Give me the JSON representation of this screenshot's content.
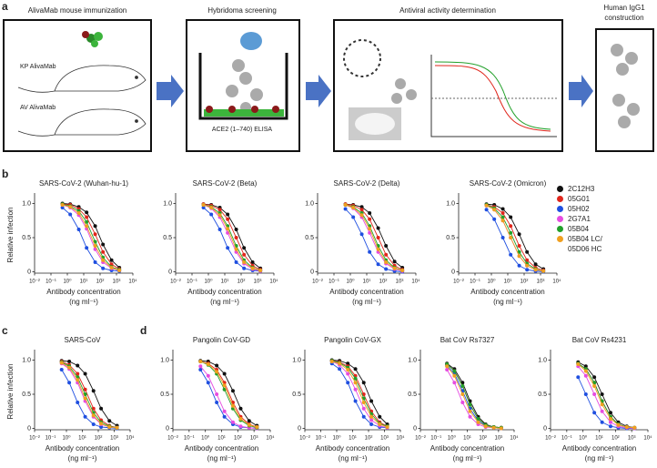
{
  "panel_a": {
    "letter": "a",
    "step1": "AlivaMab mouse immunization",
    "mouse1": "KP AlivaMab",
    "mouse2": "AV AlivaMab",
    "step2": "Hybridoma screening",
    "elisa": "ACE2 (1–740) ELISA",
    "step3": "Antiviral activity determination",
    "step4_line1": "Human IgG1",
    "step4_line2": "construction"
  },
  "chart_data": {
    "type": "line",
    "xscale": "log",
    "ylabel": "Relative infection",
    "xlabel": "Antibody concentration",
    "xunit": "(ng ml⁻¹)",
    "x": [
      0.5,
      1.5,
      5,
      15,
      50,
      150,
      500,
      1500
    ],
    "xlim": [
      0.01,
      10000
    ],
    "xticks": [
      {
        "value": 0.01,
        "label": "10⁻²"
      },
      {
        "value": 0.1,
        "label": "10⁻¹"
      },
      {
        "value": 1,
        "label": "10⁰"
      },
      {
        "value": 10,
        "label": "10¹"
      },
      {
        "value": 100,
        "label": "10²"
      },
      {
        "value": 1000,
        "label": "10³"
      },
      {
        "value": 10000,
        "label": "10⁴"
      }
    ],
    "ylim": [
      -0.02,
      1.1
    ],
    "yticks": [
      0,
      0.5,
      {
        "value": 1,
        "label": "1.0"
      }
    ],
    "series": [
      {
        "name": "2C12H3",
        "color": "#111111"
      },
      {
        "name": "05G01",
        "color": "#e0261c"
      },
      {
        "name": "05H02",
        "color": "#1f4fe0"
      },
      {
        "name": "2G7A1",
        "color": "#e64ce0"
      },
      {
        "name": "05B04",
        "color": "#22a02a"
      },
      {
        "name": "05B04 LC/ 05D06 HC",
        "color": "#f0a020"
      }
    ],
    "plots": [
      {
        "panel": "b",
        "title": "SARS-CoV-2 (Wuhan-hu-1)",
        "values": [
          [
            1,
            0.99,
            0.95,
            0.87,
            0.67,
            0.4,
            0.17,
            0.06
          ],
          [
            0.99,
            0.98,
            0.92,
            0.8,
            0.55,
            0.29,
            0.11,
            0.04
          ],
          [
            0.94,
            0.84,
            0.62,
            0.35,
            0.14,
            0.05,
            0.02,
            0.01
          ],
          [
            0.98,
            0.94,
            0.83,
            0.63,
            0.33,
            0.14,
            0.05,
            0.02
          ],
          [
            0.99,
            0.96,
            0.89,
            0.73,
            0.44,
            0.21,
            0.07,
            0.03
          ],
          [
            0.98,
            0.95,
            0.86,
            0.67,
            0.38,
            0.17,
            0.06,
            0.02
          ]
        ]
      },
      {
        "title": "SARS-CoV-2 (Beta)",
        "values": [
          [
            0.99,
            0.98,
            0.94,
            0.84,
            0.62,
            0.35,
            0.14,
            0.05
          ],
          [
            0.99,
            0.97,
            0.91,
            0.77,
            0.5,
            0.25,
            0.09,
            0.03
          ],
          [
            0.94,
            0.84,
            0.62,
            0.35,
            0.14,
            0.05,
            0.02,
            0.01
          ],
          [
            0.98,
            0.93,
            0.8,
            0.57,
            0.29,
            0.12,
            0.04,
            0.01
          ],
          [
            0.98,
            0.95,
            0.86,
            0.67,
            0.38,
            0.17,
            0.06,
            0.02
          ],
          [
            0.98,
            0.94,
            0.83,
            0.63,
            0.33,
            0.14,
            0.05,
            0.02
          ]
        ]
      },
      {
        "title": "SARS-CoV-2 (Delta)",
        "values": [
          [
            0.99,
            0.98,
            0.95,
            0.86,
            0.64,
            0.38,
            0.15,
            0.06
          ],
          [
            0.99,
            0.97,
            0.91,
            0.77,
            0.5,
            0.25,
            0.09,
            0.03
          ],
          [
            0.92,
            0.8,
            0.55,
            0.29,
            0.11,
            0.04,
            0.01,
            0
          ],
          [
            0.98,
            0.93,
            0.8,
            0.57,
            0.29,
            0.12,
            0.04,
            0.01
          ],
          [
            0.98,
            0.95,
            0.86,
            0.67,
            0.38,
            0.17,
            0.06,
            0.02
          ],
          [
            0.98,
            0.94,
            0.83,
            0.63,
            0.33,
            0.14,
            0.05,
            0.02
          ]
        ]
      },
      {
        "title": "SARS-CoV-2 (Omicron)",
        "values": [
          [
            0.99,
            0.98,
            0.92,
            0.8,
            0.55,
            0.29,
            0.11,
            0.04
          ],
          [
            0.98,
            0.95,
            0.86,
            0.67,
            0.38,
            0.17,
            0.06,
            0.02
          ],
          [
            0.91,
            0.77,
            0.5,
            0.25,
            0.09,
            0.03,
            0.01,
            0
          ],
          [
            0.97,
            0.91,
            0.75,
            0.5,
            0.23,
            0.09,
            0.03,
            0.01
          ],
          [
            0.98,
            0.93,
            0.8,
            0.57,
            0.29,
            0.12,
            0.04,
            0.01
          ],
          [
            0.97,
            0.91,
            0.75,
            0.5,
            0.23,
            0.09,
            0.03,
            0.01
          ]
        ]
      },
      {
        "panel": "c",
        "title": "SARS-CoV",
        "values": [
          [
            0.99,
            0.98,
            0.92,
            0.8,
            0.55,
            0.29,
            0.11,
            0.04
          ],
          [
            0.98,
            0.93,
            0.8,
            0.57,
            0.29,
            0.12,
            0.04,
            0.01
          ],
          [
            0.86,
            0.67,
            0.38,
            0.17,
            0.06,
            0.02,
            0.01,
            0
          ],
          [
            0.95,
            0.87,
            0.67,
            0.4,
            0.17,
            0.06,
            0.02,
            0.01
          ],
          [
            0.97,
            0.91,
            0.75,
            0.5,
            0.23,
            0.09,
            0.03,
            0.01
          ],
          [
            0.96,
            0.89,
            0.71,
            0.44,
            0.19,
            0.07,
            0.02,
            0.01
          ]
        ]
      },
      {
        "panel": "d",
        "title": "Pangolin CoV-GD",
        "values": [
          [
            0.99,
            0.98,
            0.92,
            0.8,
            0.55,
            0.29,
            0.11,
            0.04
          ],
          [
            0.98,
            0.95,
            0.86,
            0.67,
            0.38,
            0.17,
            0.06,
            0.02
          ],
          [
            0.86,
            0.67,
            0.38,
            0.17,
            0.06,
            0.02,
            0.01,
            0
          ],
          [
            0.91,
            0.77,
            0.5,
            0.25,
            0.09,
            0.03,
            0.01,
            0
          ],
          [
            0.98,
            0.93,
            0.8,
            0.57,
            0.29,
            0.12,
            0.04,
            0.01
          ],
          [
            0.98,
            0.94,
            0.83,
            0.63,
            0.33,
            0.14,
            0.05,
            0.02
          ]
        ]
      },
      {
        "title": "Pangolin CoV-GX",
        "values": [
          [
            1,
            0.99,
            0.95,
            0.87,
            0.67,
            0.4,
            0.17,
            0.06
          ],
          [
            0.99,
            0.97,
            0.91,
            0.77,
            0.5,
            0.25,
            0.09,
            0.03
          ],
          [
            0.95,
            0.87,
            0.67,
            0.4,
            0.17,
            0.06,
            0.02,
            0.01
          ],
          [
            0.98,
            0.93,
            0.8,
            0.57,
            0.29,
            0.12,
            0.04,
            0.01
          ],
          [
            0.99,
            0.96,
            0.89,
            0.73,
            0.44,
            0.21,
            0.07,
            0.03
          ],
          [
            0.98,
            0.95,
            0.86,
            0.67,
            0.38,
            0.17,
            0.06,
            0.02
          ]
        ]
      },
      {
        "title": "Bat CoV Rs7327",
        "values": [
          [
            0.95,
            0.87,
            0.67,
            0.4,
            0.17,
            0.06,
            0.02,
            0.01
          ],
          [
            0.94,
            0.84,
            0.62,
            0.35,
            0.14,
            0.05,
            0.02,
            0.01
          ],
          [
            0.92,
            0.8,
            0.55,
            0.29,
            0.11,
            0.04,
            0.01,
            0
          ],
          [
            0.86,
            0.67,
            0.38,
            0.17,
            0.06,
            0.02,
            0.01,
            0
          ],
          [
            0.94,
            0.84,
            0.62,
            0.35,
            0.14,
            0.05,
            0.02,
            0.01
          ],
          [
            0.91,
            0.77,
            0.5,
            0.25,
            0.09,
            0.03,
            0.01,
            0
          ]
        ]
      },
      {
        "title": "Bat CoV Rs4231",
        "values": [
          [
            0.97,
            0.91,
            0.75,
            0.5,
            0.23,
            0.09,
            0.03,
            0.01
          ],
          [
            0.95,
            0.87,
            0.67,
            0.4,
            0.17,
            0.06,
            0.02,
            0.01
          ],
          [
            0.75,
            0.5,
            0.23,
            0.09,
            0.03,
            0.01,
            0,
            0
          ],
          [
            0.91,
            0.77,
            0.5,
            0.25,
            0.09,
            0.03,
            0.01,
            0
          ],
          [
            0.95,
            0.87,
            0.67,
            0.4,
            0.17,
            0.06,
            0.02,
            0.01
          ],
          [
            0.94,
            0.84,
            0.62,
            0.35,
            0.14,
            0.05,
            0.02,
            0.01
          ]
        ]
      }
    ]
  }
}
